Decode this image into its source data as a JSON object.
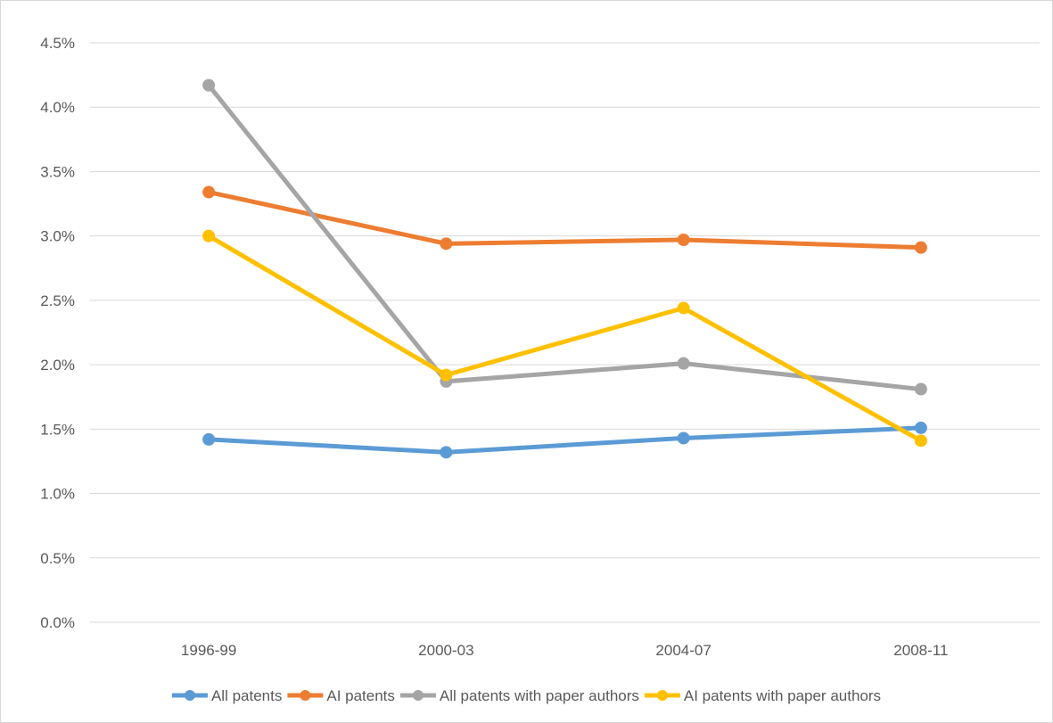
{
  "chart_data": {
    "type": "line",
    "title": "",
    "xlabel": "",
    "ylabel": "",
    "categories": [
      "1996-99",
      "2000-03",
      "2004-07",
      "2008-11"
    ],
    "ylim": [
      0,
      4.5
    ],
    "y_tick_values": [
      0,
      0.5,
      1.0,
      1.5,
      2.0,
      2.5,
      3.0,
      3.5,
      4.0,
      4.5
    ],
    "y_tick_labels": [
      "0.0%",
      "0.5%",
      "1.0%",
      "1.5%",
      "2.0%",
      "2.5%",
      "3.0%",
      "3.5%",
      "4.0%",
      "4.5%"
    ],
    "y_unit": "percent",
    "grid": true,
    "legend_position": "bottom",
    "series": [
      {
        "name": "All patents",
        "color": "#5b9bd5",
        "values": [
          1.42,
          1.32,
          1.43,
          1.51
        ]
      },
      {
        "name": "AI patents",
        "color": "#ed7d31",
        "values": [
          3.34,
          2.94,
          2.97,
          2.91
        ]
      },
      {
        "name": "All patents with paper authors",
        "color": "#a5a5a5",
        "values": [
          4.17,
          1.87,
          2.01,
          1.81
        ]
      },
      {
        "name": "AI patents with paper authors",
        "color": "#ffc000",
        "values": [
          3.0,
          1.92,
          2.44,
          1.41
        ]
      }
    ]
  }
}
